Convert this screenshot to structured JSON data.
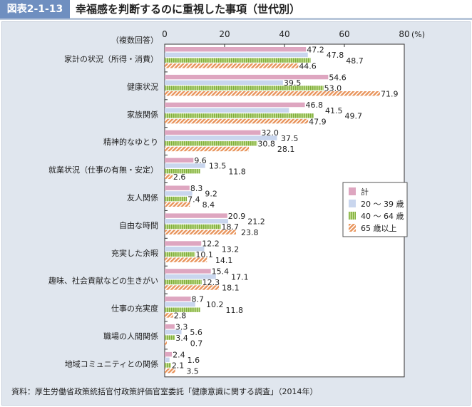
{
  "header": {
    "tag": "図表2-1-13",
    "title": "幸福感を判断するのに重視した事項（世代別）"
  },
  "source": "資料：厚生労働省政策統括官付政策評価官室委託「健康意識に関する調査」（2014年）",
  "chart_data": {
    "type": "bar",
    "orientation": "horizontal",
    "title": "幸福感を判断するのに重視した事項（世代別）",
    "note": "（複数回答）",
    "unit": "(%)",
    "xlim": [
      0,
      80
    ],
    "xticks": [
      0,
      20,
      40,
      60,
      80
    ],
    "grid": false,
    "legend": "right",
    "categories": [
      "家計の状況（所得・消費）",
      "健康状況",
      "家族関係",
      "精神的なゆとり",
      "就業状況（仕事の有無・安定）",
      "友人関係",
      "自由な時間",
      "充実した余暇",
      "趣味、社会貢献などの生きがい",
      "仕事の充実度",
      "職場の人間関係",
      "地域コミュニティとの関係"
    ],
    "series": [
      {
        "name": "計",
        "color": "#dea6c0",
        "values": [
          47.2,
          54.6,
          46.8,
          32.0,
          9.6,
          8.3,
          20.9,
          12.2,
          15.4,
          8.7,
          3.3,
          2.4
        ]
      },
      {
        "name": "20 ～ 39 歳",
        "color": "#c9d6ee",
        "values": [
          47.8,
          39.5,
          41.5,
          37.5,
          13.5,
          9.2,
          21.2,
          13.2,
          17.1,
          10.2,
          5.6,
          1.6
        ]
      },
      {
        "name": "40 ～ 64 歳",
        "color": "#9dc35a",
        "values": [
          48.7,
          53.0,
          49.7,
          30.8,
          11.8,
          7.4,
          18.7,
          10.1,
          12.3,
          11.8,
          3.4,
          2.1
        ]
      },
      {
        "name": "65 歳以上",
        "color": "#e8935a",
        "values": [
          44.6,
          71.9,
          47.9,
          28.1,
          2.6,
          8.4,
          23.8,
          14.1,
          18.1,
          2.8,
          0.7,
          3.5
        ]
      }
    ]
  }
}
